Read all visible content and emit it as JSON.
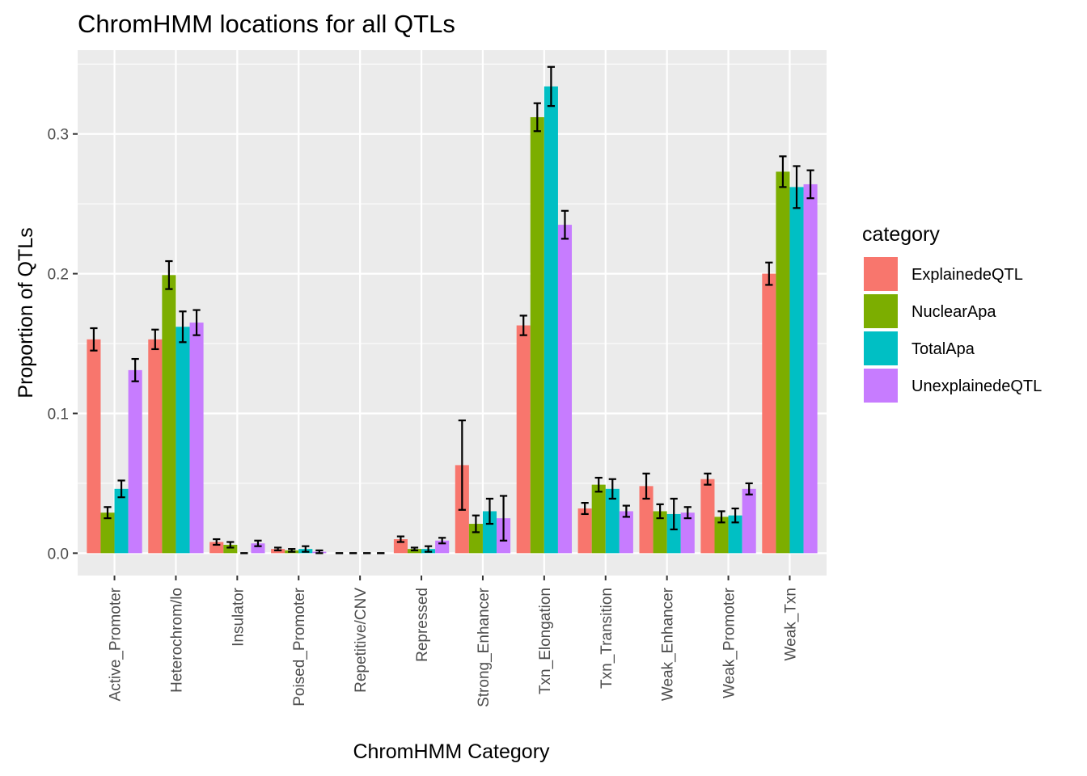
{
  "chart_data": {
    "type": "bar",
    "title": "ChromHMM locations for all QTLs",
    "xlabel": "ChromHMM Category",
    "ylabel": "Proportion of QTLs",
    "ylim": [
      -0.016,
      0.36
    ],
    "yticks": [
      0.0,
      0.1,
      0.2,
      0.3
    ],
    "ytick_labels": [
      "0.0",
      "0.1",
      "0.2",
      "0.3"
    ],
    "grid": true,
    "legend_title": "category",
    "legend_position": "right",
    "categories": [
      "Active_Promoter",
      "Heterochrom/lo",
      "Insulator",
      "Poised_Promoter",
      "Repetitive/CNV",
      "Repressed",
      "Strong_Enhancer",
      "Txn_Elongation",
      "Txn_Transition",
      "Weak_Enhancer",
      "Weak_Promoter",
      "Weak_Txn"
    ],
    "series": [
      {
        "name": "ExplainedeQTL",
        "color": "#F8766D",
        "values": [
          0.153,
          0.153,
          0.008,
          0.003,
          0.0,
          0.01,
          0.063,
          0.163,
          0.032,
          0.048,
          0.053,
          0.2
        ],
        "errors": [
          0.008,
          0.007,
          0.002,
          0.001,
          0.0,
          0.002,
          0.032,
          0.007,
          0.004,
          0.009,
          0.004,
          0.008
        ]
      },
      {
        "name": "NuclearApa",
        "color": "#7CAE00",
        "values": [
          0.029,
          0.199,
          0.006,
          0.002,
          0.0,
          0.003,
          0.021,
          0.312,
          0.049,
          0.03,
          0.026,
          0.273
        ],
        "errors": [
          0.004,
          0.01,
          0.002,
          0.001,
          0.0,
          0.001,
          0.006,
          0.01,
          0.005,
          0.005,
          0.004,
          0.011
        ]
      },
      {
        "name": "TotalApa",
        "color": "#00BFC4",
        "values": [
          0.046,
          0.162,
          0.0,
          0.003,
          0.0,
          0.003,
          0.03,
          0.334,
          0.046,
          0.028,
          0.027,
          0.262
        ],
        "errors": [
          0.006,
          0.011,
          0.0,
          0.002,
          0.0,
          0.002,
          0.009,
          0.014,
          0.007,
          0.011,
          0.005,
          0.015
        ]
      },
      {
        "name": "UnexplainedeQTL",
        "color": "#C77CFF",
        "values": [
          0.131,
          0.165,
          0.007,
          0.001,
          0.0,
          0.009,
          0.025,
          0.235,
          0.03,
          0.029,
          0.046,
          0.264
        ],
        "errors": [
          0.008,
          0.009,
          0.002,
          0.001,
          0.0,
          0.002,
          0.016,
          0.01,
          0.004,
          0.004,
          0.004,
          0.01
        ]
      }
    ]
  }
}
